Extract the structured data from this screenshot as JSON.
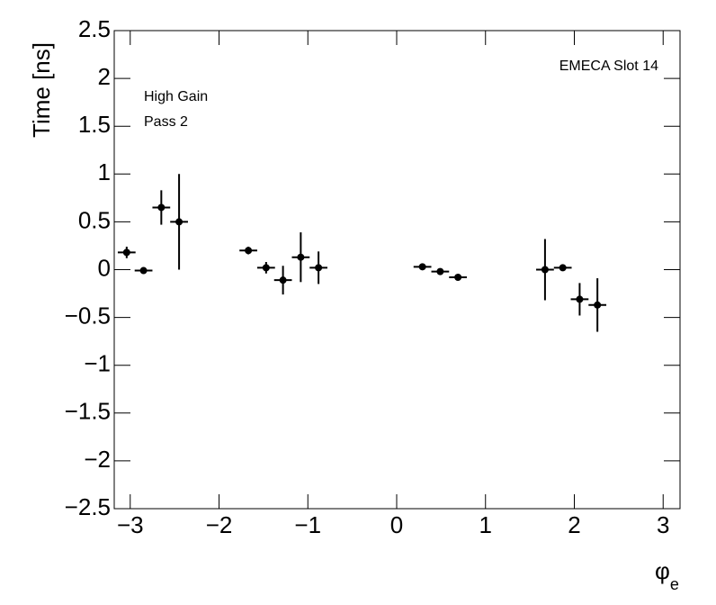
{
  "chart_data": {
    "type": "errorbar",
    "ylabel": "Time [ns]",
    "xlabel": {
      "text": "φ",
      "subscript": "e"
    },
    "annotations": [
      "High Gain",
      "Pass 2",
      "EMECA Slot 14"
    ],
    "color": "#000000",
    "x": [
      -3.04,
      -2.85,
      -2.65,
      -2.45,
      -1.67,
      -1.47,
      -1.28,
      -1.08,
      -0.88,
      0.29,
      0.49,
      0.69,
      1.67,
      1.87,
      2.06,
      2.26
    ],
    "values": [
      0.18,
      -0.01,
      0.65,
      0.5,
      0.2,
      0.02,
      -0.11,
      0.13,
      0.02,
      0.03,
      -0.02,
      -0.08,
      0.0,
      0.02,
      -0.31,
      -0.37
    ],
    "errors": [
      0.06,
      0.02,
      0.18,
      0.5,
      0.04,
      0.06,
      0.15,
      0.26,
      0.17,
      0.02,
      0.03,
      0.02,
      0.32,
      0.03,
      0.17,
      0.28
    ],
    "xerr": 0.1,
    "xlim": [
      -3.18,
      3.19
    ],
    "ylim": [
      -2.5,
      2.5
    ],
    "xticks": [
      {
        "value": -3,
        "label": "−3"
      },
      {
        "value": -2,
        "label": "−2"
      },
      {
        "value": -1,
        "label": "−1"
      },
      0,
      1,
      2,
      3
    ],
    "yticks": [
      {
        "value": -2.5,
        "label": "−2.5"
      },
      {
        "value": -2,
        "label": "−2"
      },
      {
        "value": -1.5,
        "label": "−1.5"
      },
      {
        "value": -1,
        "label": "−1"
      },
      {
        "value": -0.5,
        "label": "−0.5"
      },
      0,
      0.5,
      1,
      1.5,
      2,
      2.5
    ]
  }
}
